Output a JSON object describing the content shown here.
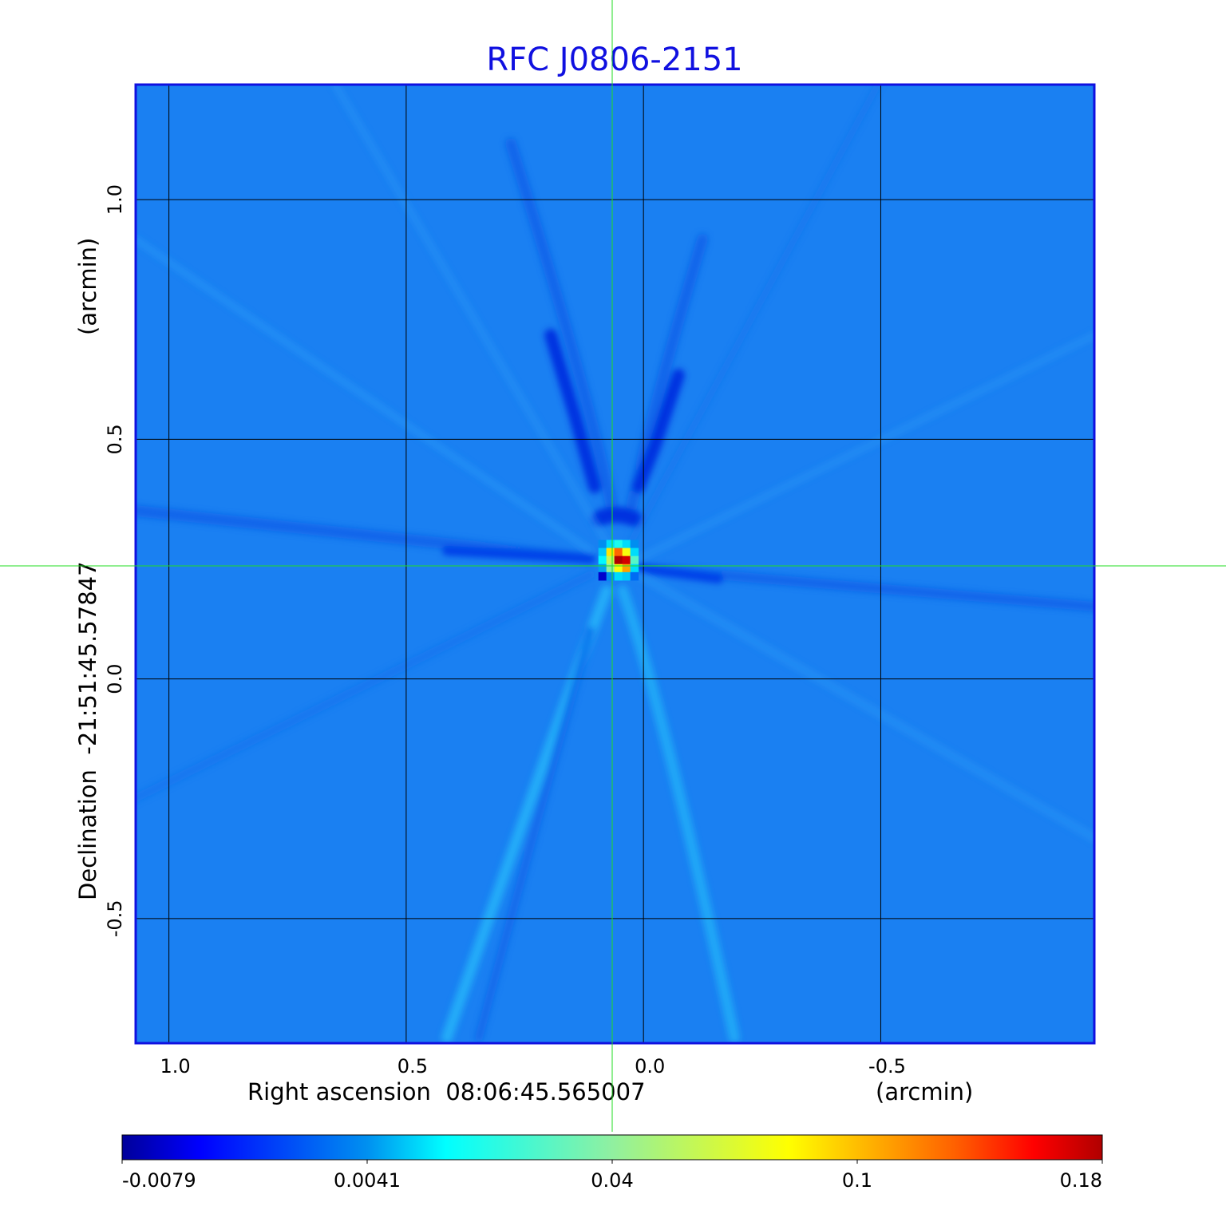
{
  "chart_data": {
    "type": "heatmap",
    "title": "RFC J0806-2151",
    "xlabel": "Right ascension  08:06:45.565007",
    "xunit": "(arcmin)",
    "ylabel": "Declination  -21:51:45.57847",
    "yunit": "(arcmin)",
    "xlim": [
      1.07,
      -0.95
    ],
    "ylim": [
      -0.76,
      1.24
    ],
    "xticks": [
      1.0,
      0.5,
      0.0,
      -0.5
    ],
    "xtick_labels": [
      "1.0",
      "0.5",
      "0.0",
      "-0.5"
    ],
    "yticks": [
      1.0,
      0.5,
      0.0,
      -0.5
    ],
    "ytick_labels": [
      "1.0",
      "0.5",
      "0.0",
      "-0.5"
    ],
    "grid": true,
    "crosshair": {
      "ra": 0.065,
      "dec": 0.24
    },
    "background_value": 0.0,
    "peak": {
      "ra": 0.06,
      "dec": 0.25,
      "value": 0.18
    },
    "peak_pixels": {
      "ra_start": 0.095,
      "dec_start": 0.29,
      "step": 0.0168,
      "values": [
        [
          0.004,
          0.012,
          0.02,
          0.012,
          0.004
        ],
        [
          0.01,
          0.09,
          0.13,
          0.08,
          0.012
        ],
        [
          0.015,
          0.06,
          0.18,
          0.17,
          0.03
        ],
        [
          0.006,
          0.04,
          0.08,
          0.11,
          0.012
        ],
        [
          -0.006,
          0.004,
          0.012,
          0.01,
          0.002
        ]
      ]
    },
    "colorbar": {
      "colormap": "jet",
      "tick_values": [
        -0.0079,
        0.0041,
        0.04,
        0.1,
        0.18
      ],
      "tick_labels": [
        "-0.0079",
        "0.0041",
        "0.04",
        "0.1",
        "0.18"
      ]
    },
    "colors": {
      "title": "#1010e0",
      "frame": "#1010e0",
      "crosshair": "#22dd22",
      "grid": "#000000"
    }
  }
}
